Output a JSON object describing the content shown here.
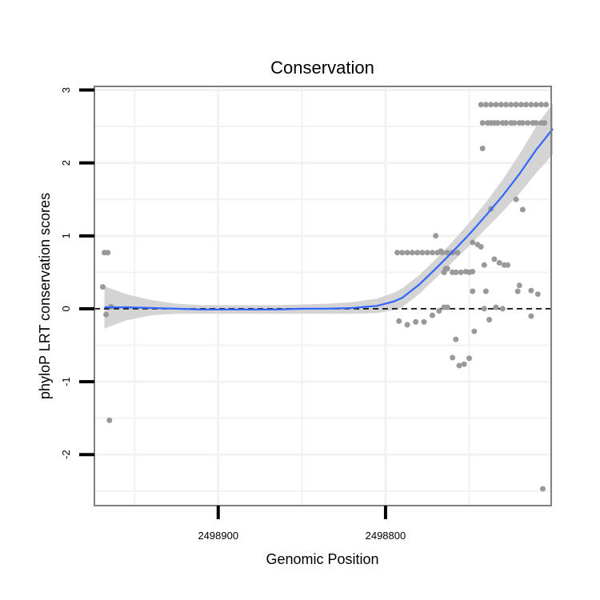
{
  "chart_data": {
    "type": "scatter",
    "title": "Conservation",
    "xlabel": "Genomic Position",
    "ylabel": "phyloP LRT conservation scores",
    "x_ticks": [
      {
        "value": 2498900,
        "label": "2498900"
      },
      {
        "value": 2498800,
        "label": "2498800"
      }
    ],
    "y_ticks": [
      {
        "value": -2,
        "label": "-2"
      },
      {
        "value": -1,
        "label": "-1"
      },
      {
        "value": 0,
        "label": "0"
      },
      {
        "value": 1,
        "label": "1"
      },
      {
        "value": 2,
        "label": "2"
      },
      {
        "value": 3,
        "label": "3"
      }
    ],
    "x_reversed": true,
    "xlim": [
      2498974,
      2498701
    ],
    "ylim": [
      -2.7,
      3.05
    ],
    "grid": true,
    "reference_line": {
      "y": 0,
      "style": "dashed",
      "color": "#000000"
    },
    "colors": {
      "points": "#999999",
      "smooth_line": "#3366ff",
      "confidence_band": "#d4d4d4",
      "panel_border": "#808080",
      "grid": "#f2f2f2"
    },
    "series": [
      {
        "kind": "points",
        "x": [
          2498969,
          2498967,
          2498966,
          2498968,
          2498965,
          2498964,
          2498793,
          2498790,
          2498787,
          2498784,
          2498781,
          2498778,
          2498775,
          2498772,
          2498769,
          2498766,
          2498763,
          2498760,
          2498757,
          2498792,
          2498787,
          2498782,
          2498777,
          2498772,
          2498768,
          2498765,
          2498763,
          2498758,
          2498770,
          2498767,
          2498763,
          2498760,
          2498755,
          2498750,
          2498748,
          2498765,
          2498760,
          2498756,
          2498753,
          2498750,
          2498747,
          2498745,
          2498743,
          2498737,
          2498764,
          2498758,
          2498752,
          2498748,
          2498742,
          2498741,
          2498734,
          2498730,
          2498740,
          2498735,
          2498729,
          2498721,
          2498713,
          2498720,
          2498741,
          2498738,
          2498732,
          2498727,
          2498722,
          2498718,
          2498713,
          2498709,
          2498706,
          2498742,
          2498739,
          2498737,
          2498735,
          2498733,
          2498730,
          2498728,
          2498725,
          2498723,
          2498720,
          2498718,
          2498715,
          2498712,
          2498710,
          2498707,
          2498705,
          2498743,
          2498740,
          2498737,
          2498734,
          2498731,
          2498728,
          2498725,
          2498722,
          2498719,
          2498716,
          2498713,
          2498710,
          2498707,
          2498704,
          2498728,
          2498722,
          2498748,
          2498765
        ],
        "y": [
          0.3,
          -0.08,
          0.77,
          0.77,
          -1.53,
          0.03,
          0.77,
          0.77,
          0.77,
          0.77,
          0.77,
          0.77,
          0.77,
          0.77,
          0.77,
          0.77,
          0.77,
          0.77,
          0.77,
          -0.17,
          -0.22,
          -0.18,
          -0.18,
          -0.09,
          -0.03,
          0.02,
          0.02,
          -0.42,
          1.0,
          0.79,
          0.55,
          0.5,
          0.5,
          0.5,
          0.51,
          0.5,
          -0.67,
          -0.78,
          -0.76,
          -0.68,
          -0.31,
          0.88,
          0.85,
          1.37,
          0.55,
          0.5,
          0.51,
          0.91,
          2.2,
          0.0,
          0.02,
          0.0,
          0.24,
          0.68,
          0.6,
          0.24,
          0.25,
          0.32,
          0.6,
          -0.15,
          0.63,
          0.6,
          1.5,
          1.36,
          -0.1,
          0.2,
          -2.47,
          2.55,
          2.55,
          2.55,
          2.55,
          2.55,
          2.55,
          2.55,
          2.55,
          2.55,
          2.55,
          2.55,
          2.55,
          2.55,
          2.55,
          2.55,
          2.55,
          2.8,
          2.8,
          2.8,
          2.8,
          2.8,
          2.8,
          2.8,
          2.8,
          2.8,
          2.8,
          2.8,
          2.8,
          2.8,
          2.8,
          2.55,
          2.8,
          0.24,
          0.5
        ]
      },
      {
        "kind": "smooth",
        "x": [
          2498968,
          2498955,
          2498940,
          2498925,
          2498910,
          2498895,
          2498880,
          2498865,
          2498850,
          2498835,
          2498820,
          2498805,
          2498795,
          2498790,
          2498780,
          2498770,
          2498760,
          2498750,
          2498740,
          2498730,
          2498720,
          2498710,
          2498700
        ],
        "y": [
          0.02,
          0.02,
          0.01,
          0.0,
          -0.01,
          -0.01,
          -0.01,
          -0.01,
          0.0,
          0.0,
          0.01,
          0.04,
          0.1,
          0.15,
          0.33,
          0.55,
          0.78,
          1.02,
          1.28,
          1.55,
          1.85,
          2.18,
          2.47
        ],
        "ci_low": [
          -0.27,
          -0.16,
          -0.09,
          -0.07,
          -0.07,
          -0.07,
          -0.07,
          -0.07,
          -0.07,
          -0.07,
          -0.07,
          -0.06,
          -0.02,
          0.02,
          0.2,
          0.42,
          0.64,
          0.86,
          1.1,
          1.33,
          1.58,
          1.86,
          2.12
        ],
        "ci_high": [
          0.31,
          0.2,
          0.12,
          0.07,
          0.05,
          0.05,
          0.05,
          0.05,
          0.06,
          0.07,
          0.09,
          0.14,
          0.22,
          0.28,
          0.46,
          0.68,
          0.92,
          1.18,
          1.46,
          1.77,
          2.12,
          2.5,
          2.82
        ]
      }
    ]
  }
}
